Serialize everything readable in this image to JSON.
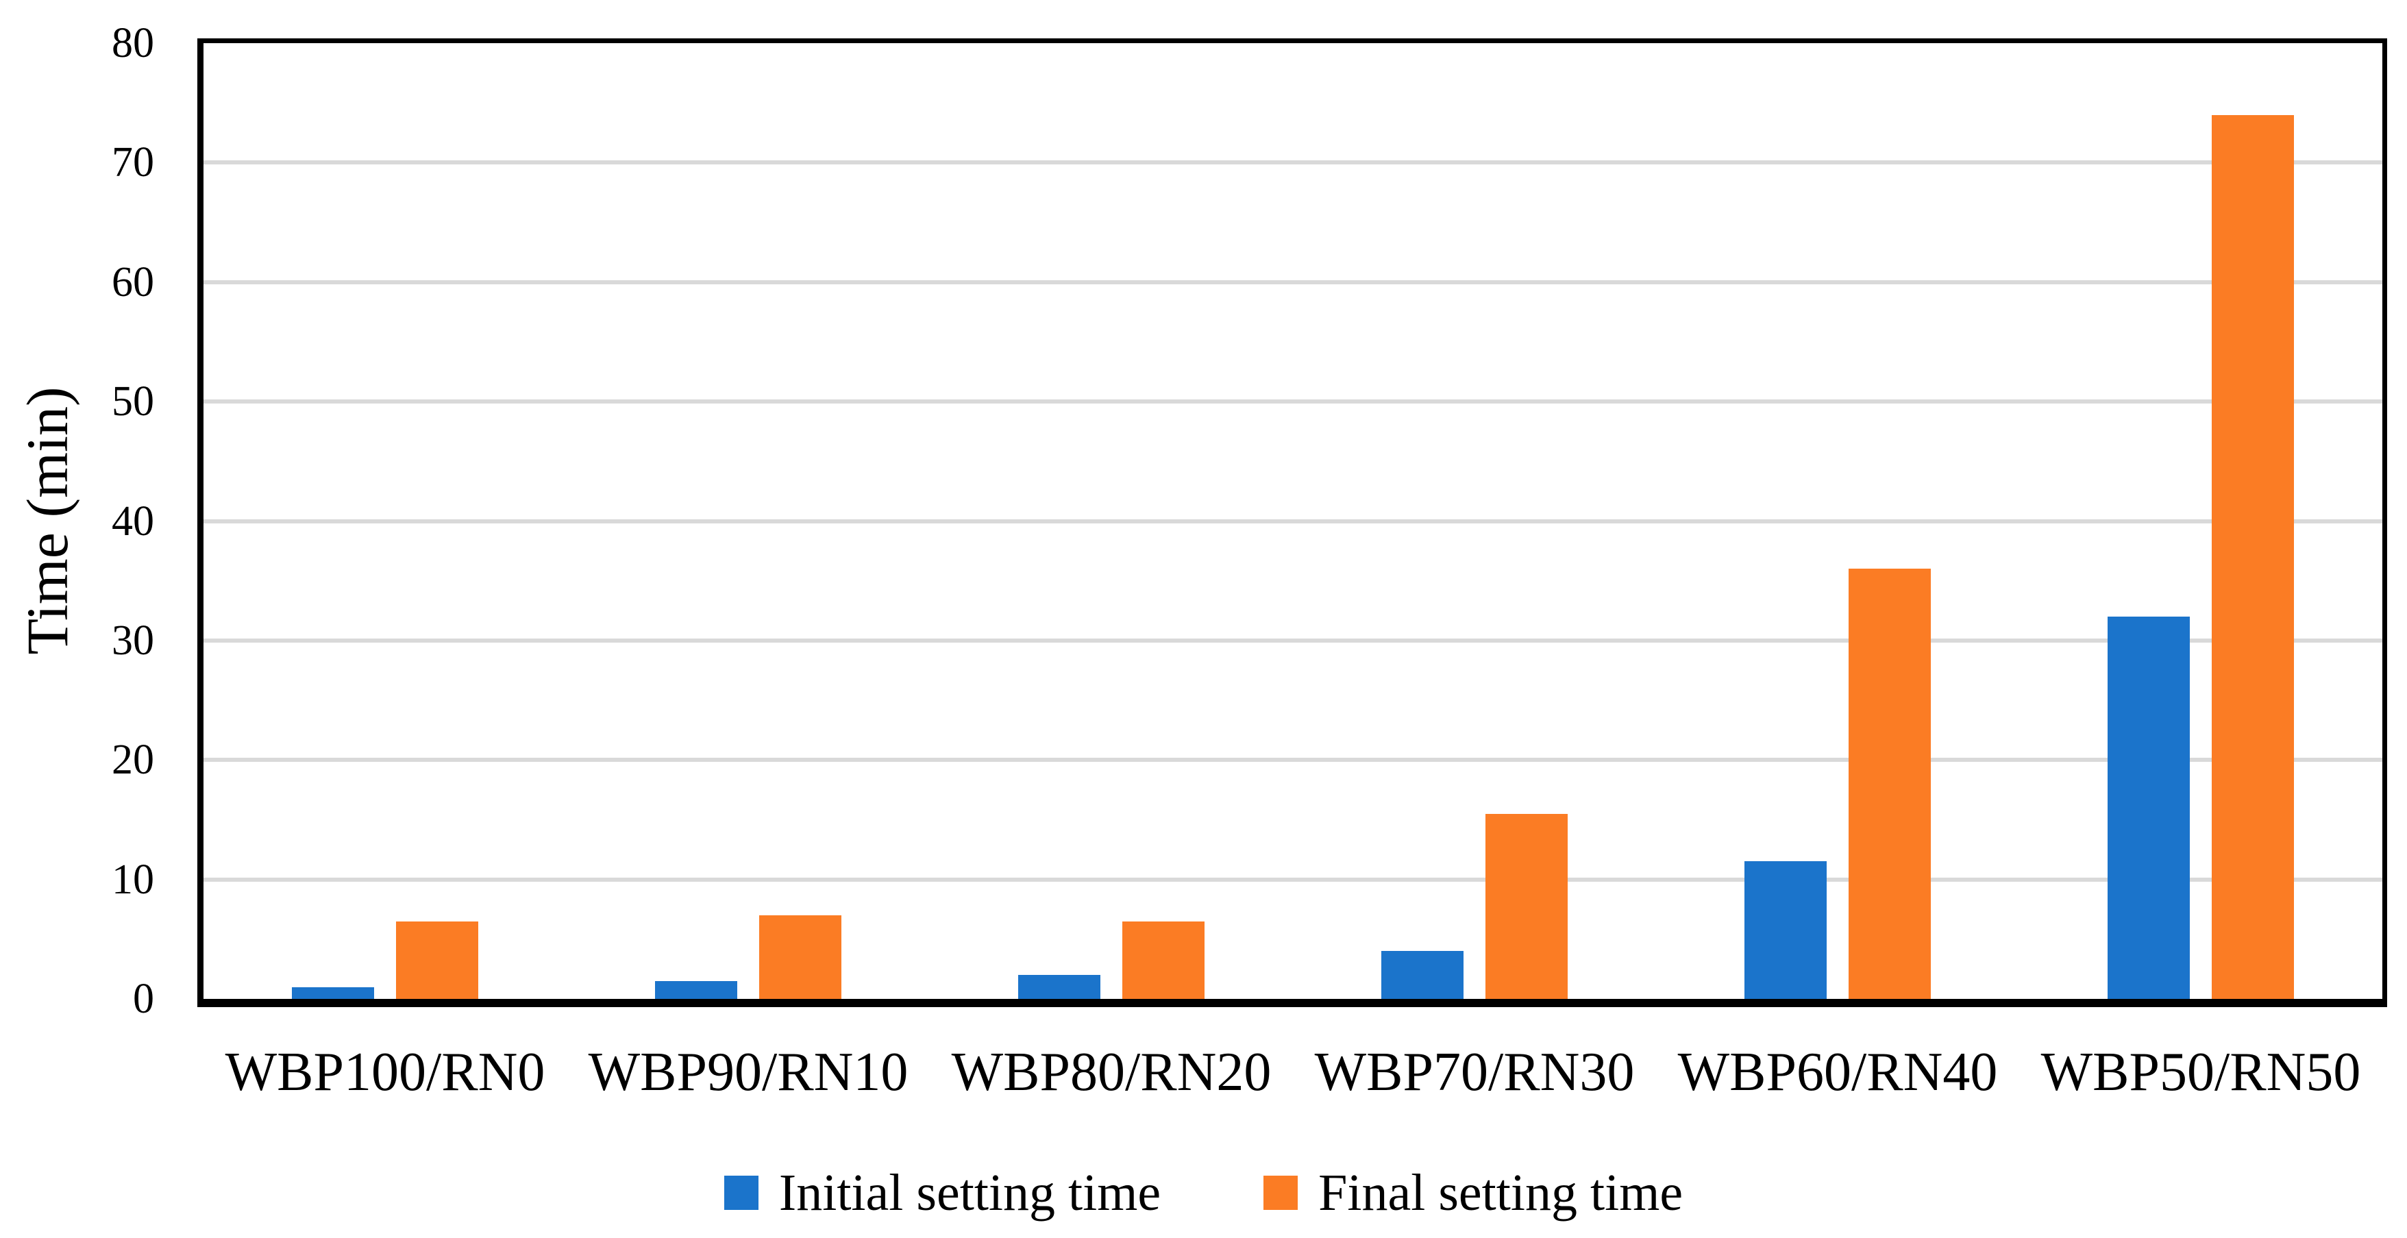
{
  "figure": {
    "background": "#ffffff",
    "frame_color": "#000000"
  },
  "chart_data": {
    "type": "bar",
    "title": "",
    "xlabel": "",
    "ylabel": "Time (min)",
    "categories": [
      "WBP100/RN0",
      "WBP90/RN10",
      "WBP80/RN20",
      "WBP70/RN30",
      "WBP60/RN40",
      "WBP50/RN50"
    ],
    "series": [
      {
        "name": "Initial setting time",
        "color": "#1B74CB",
        "values": [
          1,
          1.5,
          2,
          4,
          11.5,
          32
        ]
      },
      {
        "name": "Final setting time",
        "color": "#FB7C24",
        "values": [
          6.5,
          7,
          6.5,
          15.5,
          36,
          74
        ]
      }
    ],
    "ylim": [
      0,
      80
    ],
    "yticks": [
      0,
      10,
      20,
      30,
      40,
      50,
      60,
      70,
      80
    ],
    "ytick_interval": 10,
    "grid": "horizontal",
    "gridline_color": "#D9D9D9",
    "axis_color": "#000000",
    "legend_position": "bottom"
  }
}
